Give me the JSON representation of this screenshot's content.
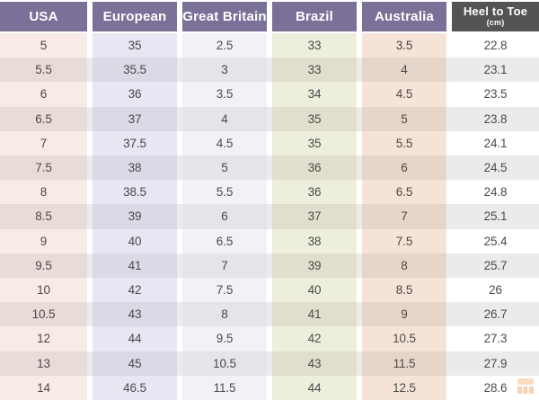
{
  "colors": {
    "header_text": "#ffffff",
    "cell_text": "#4a4a4a",
    "zebra_band": "#ebebeb",
    "header_purple": "#7a7098",
    "header_dark": "#545454",
    "watermark_orange_light": "#f5c38e",
    "watermark_orange": "#efae72"
  },
  "chart_data": {
    "type": "table",
    "columns": [
      {
        "id": "usa",
        "label": "USA",
        "header_color": "#7a7098",
        "tint_even": "#f8eae5",
        "tint_odd": "#e9dbd8"
      },
      {
        "id": "european",
        "label": "European",
        "header_color": "#7a7098",
        "tint_even": "#e7e6f2",
        "tint_odd": "#dad9e5"
      },
      {
        "id": "great-britain",
        "label": "Great Britain",
        "header_color": "#7a7098",
        "tint_even": "#f2f2f6",
        "tint_odd": "#e4e4e9"
      },
      {
        "id": "brazil",
        "label": "Brazil",
        "header_color": "#7a7098",
        "tint_even": "#eeeedc",
        "tint_odd": "#e0dfce"
      },
      {
        "id": "australia",
        "label": "Australia",
        "header_color": "#7a7098",
        "tint_even": "#f4e3d6",
        "tint_odd": "#e6d5c9"
      },
      {
        "id": "heel-to-toe",
        "label": "Heel to Toe",
        "sublabel": "(cm)",
        "header_color": "#545454",
        "tint_even": "#ffffff",
        "tint_odd": "#ebebeb"
      }
    ],
    "rows": [
      [
        "5",
        "35",
        "2.5",
        "33",
        "3.5",
        "22.8"
      ],
      [
        "5.5",
        "35.5",
        "3",
        "33",
        "4",
        "23.1"
      ],
      [
        "6",
        "36",
        "3.5",
        "34",
        "4.5",
        "23.5"
      ],
      [
        "6.5",
        "37",
        "4",
        "35",
        "5",
        "23.8"
      ],
      [
        "7",
        "37.5",
        "4.5",
        "35",
        "5.5",
        "24.1"
      ],
      [
        "7.5",
        "38",
        "5",
        "36",
        "6",
        "24.5"
      ],
      [
        "8",
        "38.5",
        "5.5",
        "36",
        "6.5",
        "24.8"
      ],
      [
        "8.5",
        "39",
        "6",
        "37",
        "7",
        "25.1"
      ],
      [
        "9",
        "40",
        "6.5",
        "38",
        "7.5",
        "25.4"
      ],
      [
        "9.5",
        "41",
        "7",
        "39",
        "8",
        "25.7"
      ],
      [
        "10",
        "42",
        "7.5",
        "40",
        "8.5",
        "26"
      ],
      [
        "10.5",
        "43",
        "8",
        "41",
        "9",
        "26.7"
      ],
      [
        "12",
        "44",
        "9.5",
        "42",
        "10.5",
        "27.3"
      ],
      [
        "13",
        "45",
        "10.5",
        "43",
        "11.5",
        "27.9"
      ],
      [
        "14",
        "46.5",
        "11.5",
        "44",
        "12.5",
        "28.6"
      ]
    ]
  }
}
